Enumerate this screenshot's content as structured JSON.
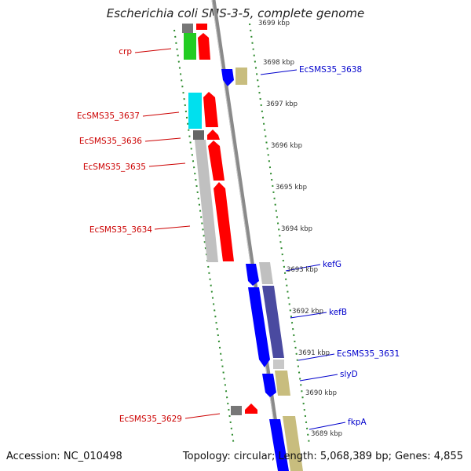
{
  "header": {
    "title": "Escherichia coli SMS-3-5, complete genome"
  },
  "footer": {
    "accession": "Accession: NC_010498",
    "summary": "Topology: circular; Length: 5,068,389 bp; Genes: 4,855"
  },
  "colors": {
    "strand_minus": "#ff0000",
    "strand_plus": "#0000ff",
    "backbone": "#7a7a7a",
    "tick": "#2e8b2e",
    "label_minus": "#cc0000",
    "label_plus": "#0000cc"
  },
  "chart_data": {
    "type": "genome-map",
    "units": "kbp",
    "position_ticks": [
      "3699 kbp",
      "3698 kbp",
      "3697 kbp",
      "3696 kbp",
      "3695 kbp",
      "3694 kbp",
      "3693 kbp",
      "3692 kbp",
      "3691 kbp",
      "3690 kbp",
      "3689 kbp"
    ],
    "gene_labels": [
      {
        "name": "crp",
        "strand": "minus"
      },
      {
        "name": "EcSMS35_3637",
        "strand": "minus"
      },
      {
        "name": "EcSMS35_3636",
        "strand": "minus"
      },
      {
        "name": "EcSMS35_3635",
        "strand": "minus"
      },
      {
        "name": "EcSMS35_3634",
        "strand": "minus"
      },
      {
        "name": "EcSMS35_3629",
        "strand": "minus"
      },
      {
        "name": "EcSMS35_3638",
        "strand": "plus"
      },
      {
        "name": "kefG",
        "strand": "plus"
      },
      {
        "name": "kefB",
        "strand": "plus"
      },
      {
        "name": "EcSMS35_3631",
        "strand": "plus"
      },
      {
        "name": "slyD",
        "strand": "plus"
      },
      {
        "name": "fkpA",
        "strand": "plus"
      }
    ]
  }
}
